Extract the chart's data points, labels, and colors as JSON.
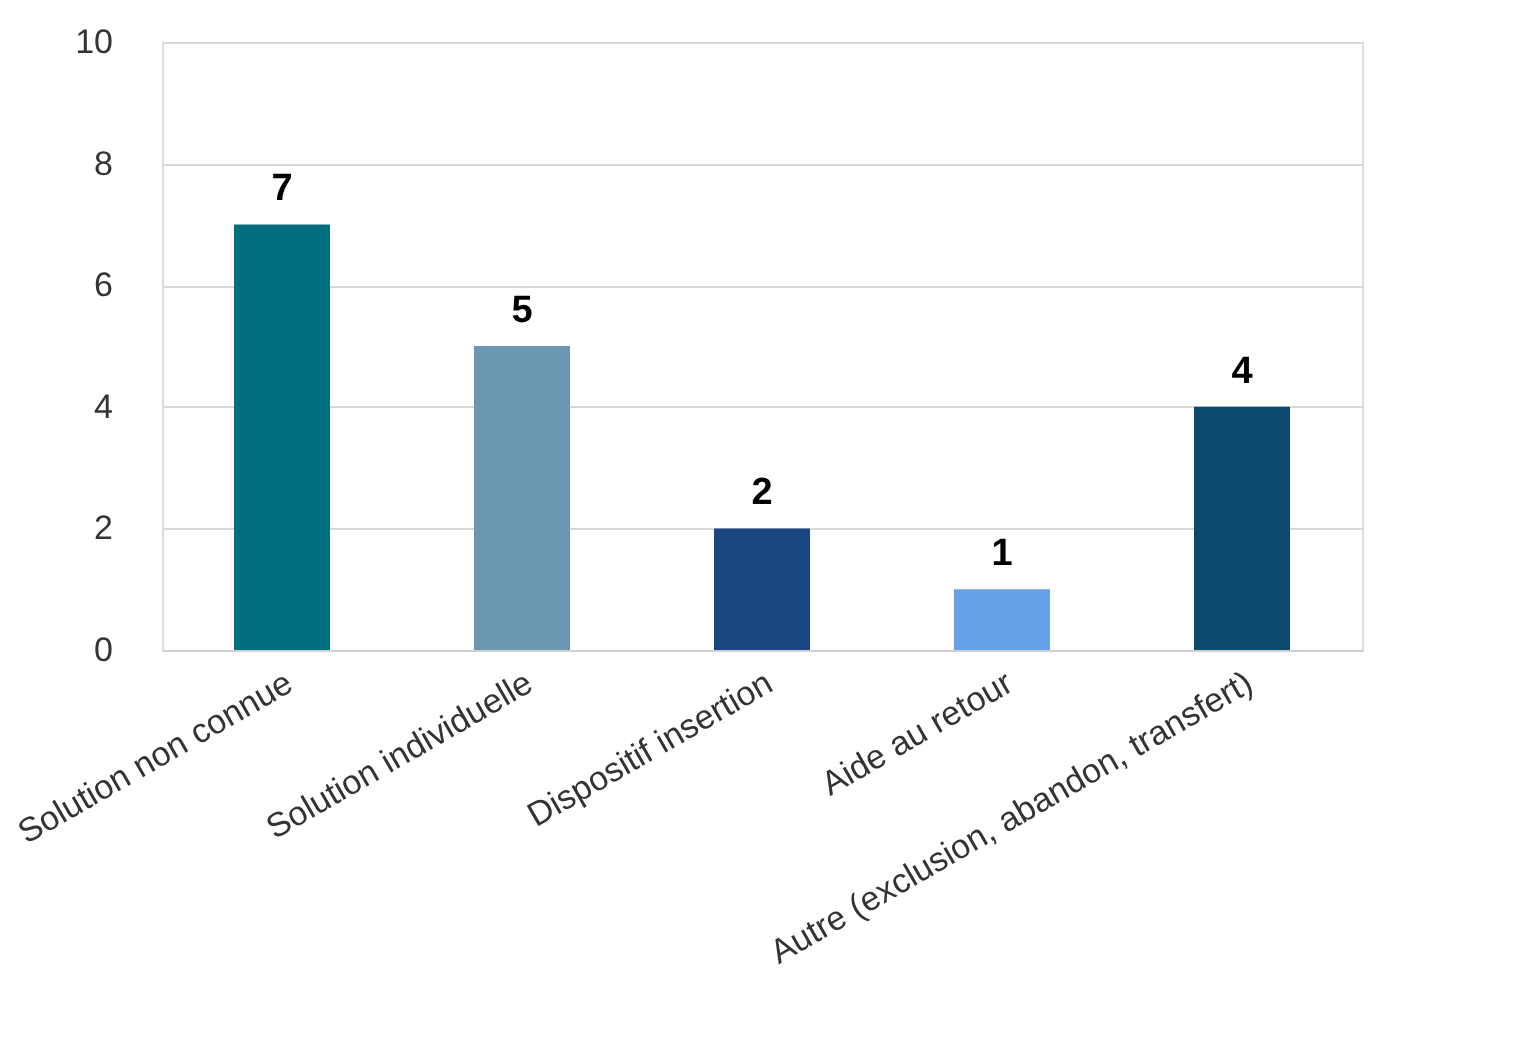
{
  "chart_data": {
    "type": "bar",
    "categories": [
      "Solution non connue",
      "Solution individuelle",
      "Dispositif insertion",
      "Aide au retour",
      "Autre (exclusion, abandon, transfert)"
    ],
    "values": [
      7,
      5,
      2,
      1,
      4
    ],
    "colors": [
      "#006e7e",
      "#6a98b0",
      "#1a4781",
      "#66a0e6",
      "#0b4a6e"
    ],
    "ylim": [
      0,
      10
    ],
    "yticks": [
      0,
      2,
      4,
      6,
      8,
      10
    ],
    "grid": "y",
    "data_labels": true
  }
}
